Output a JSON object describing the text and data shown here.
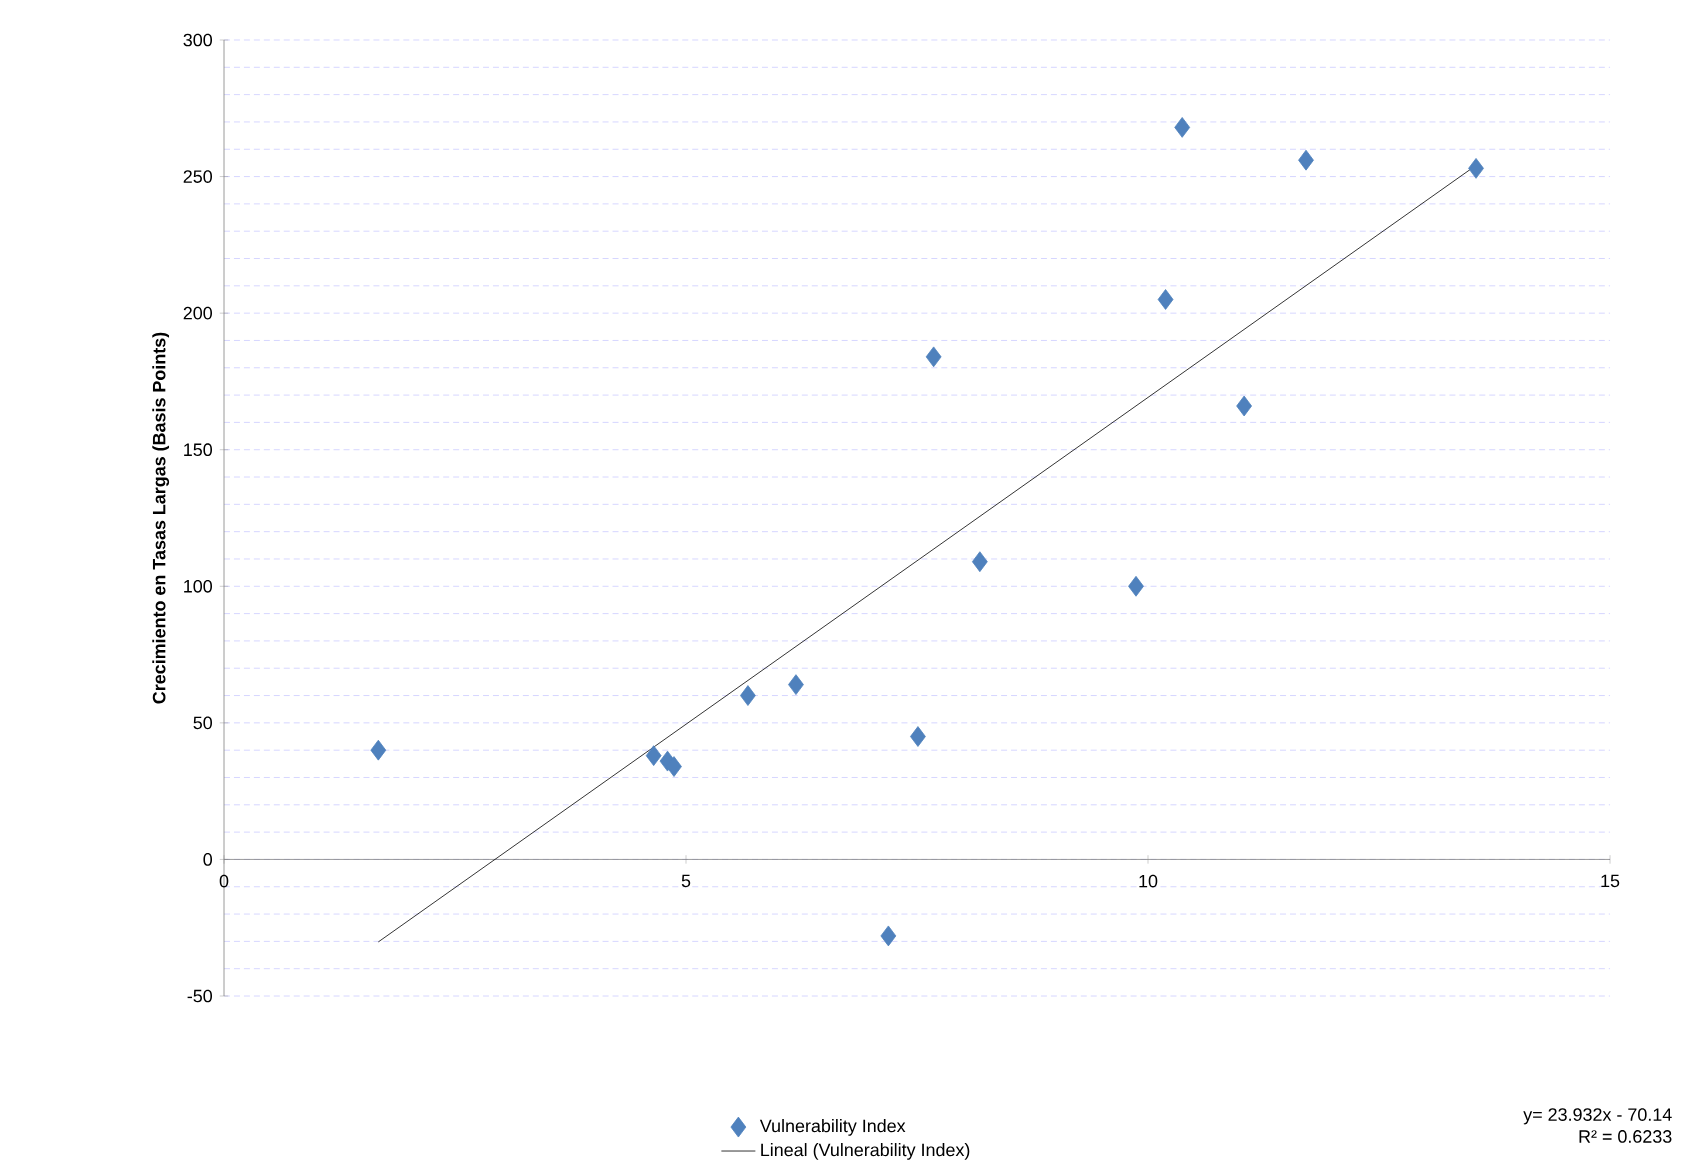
{
  "chart_data": {
    "type": "scatter",
    "ylabel": "Crecimiento en Tasas Largas (Basis Points)",
    "xlim": [
      0,
      15
    ],
    "xticks": [
      0,
      5,
      10,
      15
    ],
    "ylim": [
      -50,
      300
    ],
    "yticks": [
      -50,
      0,
      50,
      100,
      150,
      200,
      250,
      300
    ],
    "grid": "y",
    "legend": "bottom",
    "marker": "diamond",
    "annotations": [
      "y= 23.932x - 70.14",
      "R² = 0.6233"
    ],
    "series": [
      {
        "name": "Vulnerability Index",
        "color": "#4f81bd",
        "x": [
          1.67,
          4.65,
          4.8,
          4.87,
          5.67,
          6.19,
          7.19,
          7.51,
          7.68,
          8.18,
          9.87,
          10.19,
          10.37,
          11.04,
          11.71,
          13.55
        ],
        "values": [
          40,
          38,
          36,
          34,
          60,
          64,
          -28,
          45,
          184,
          109,
          100,
          205,
          268,
          166,
          256,
          253
        ]
      },
      {
        "name": "Lineal (Vulnerability Index)",
        "type": "line",
        "color": "#000000",
        "marker": "none",
        "line_style": "solid",
        "x": [
          1.67,
          13.55
        ],
        "values": [
          -30.2,
          254.1
        ]
      }
    ]
  }
}
